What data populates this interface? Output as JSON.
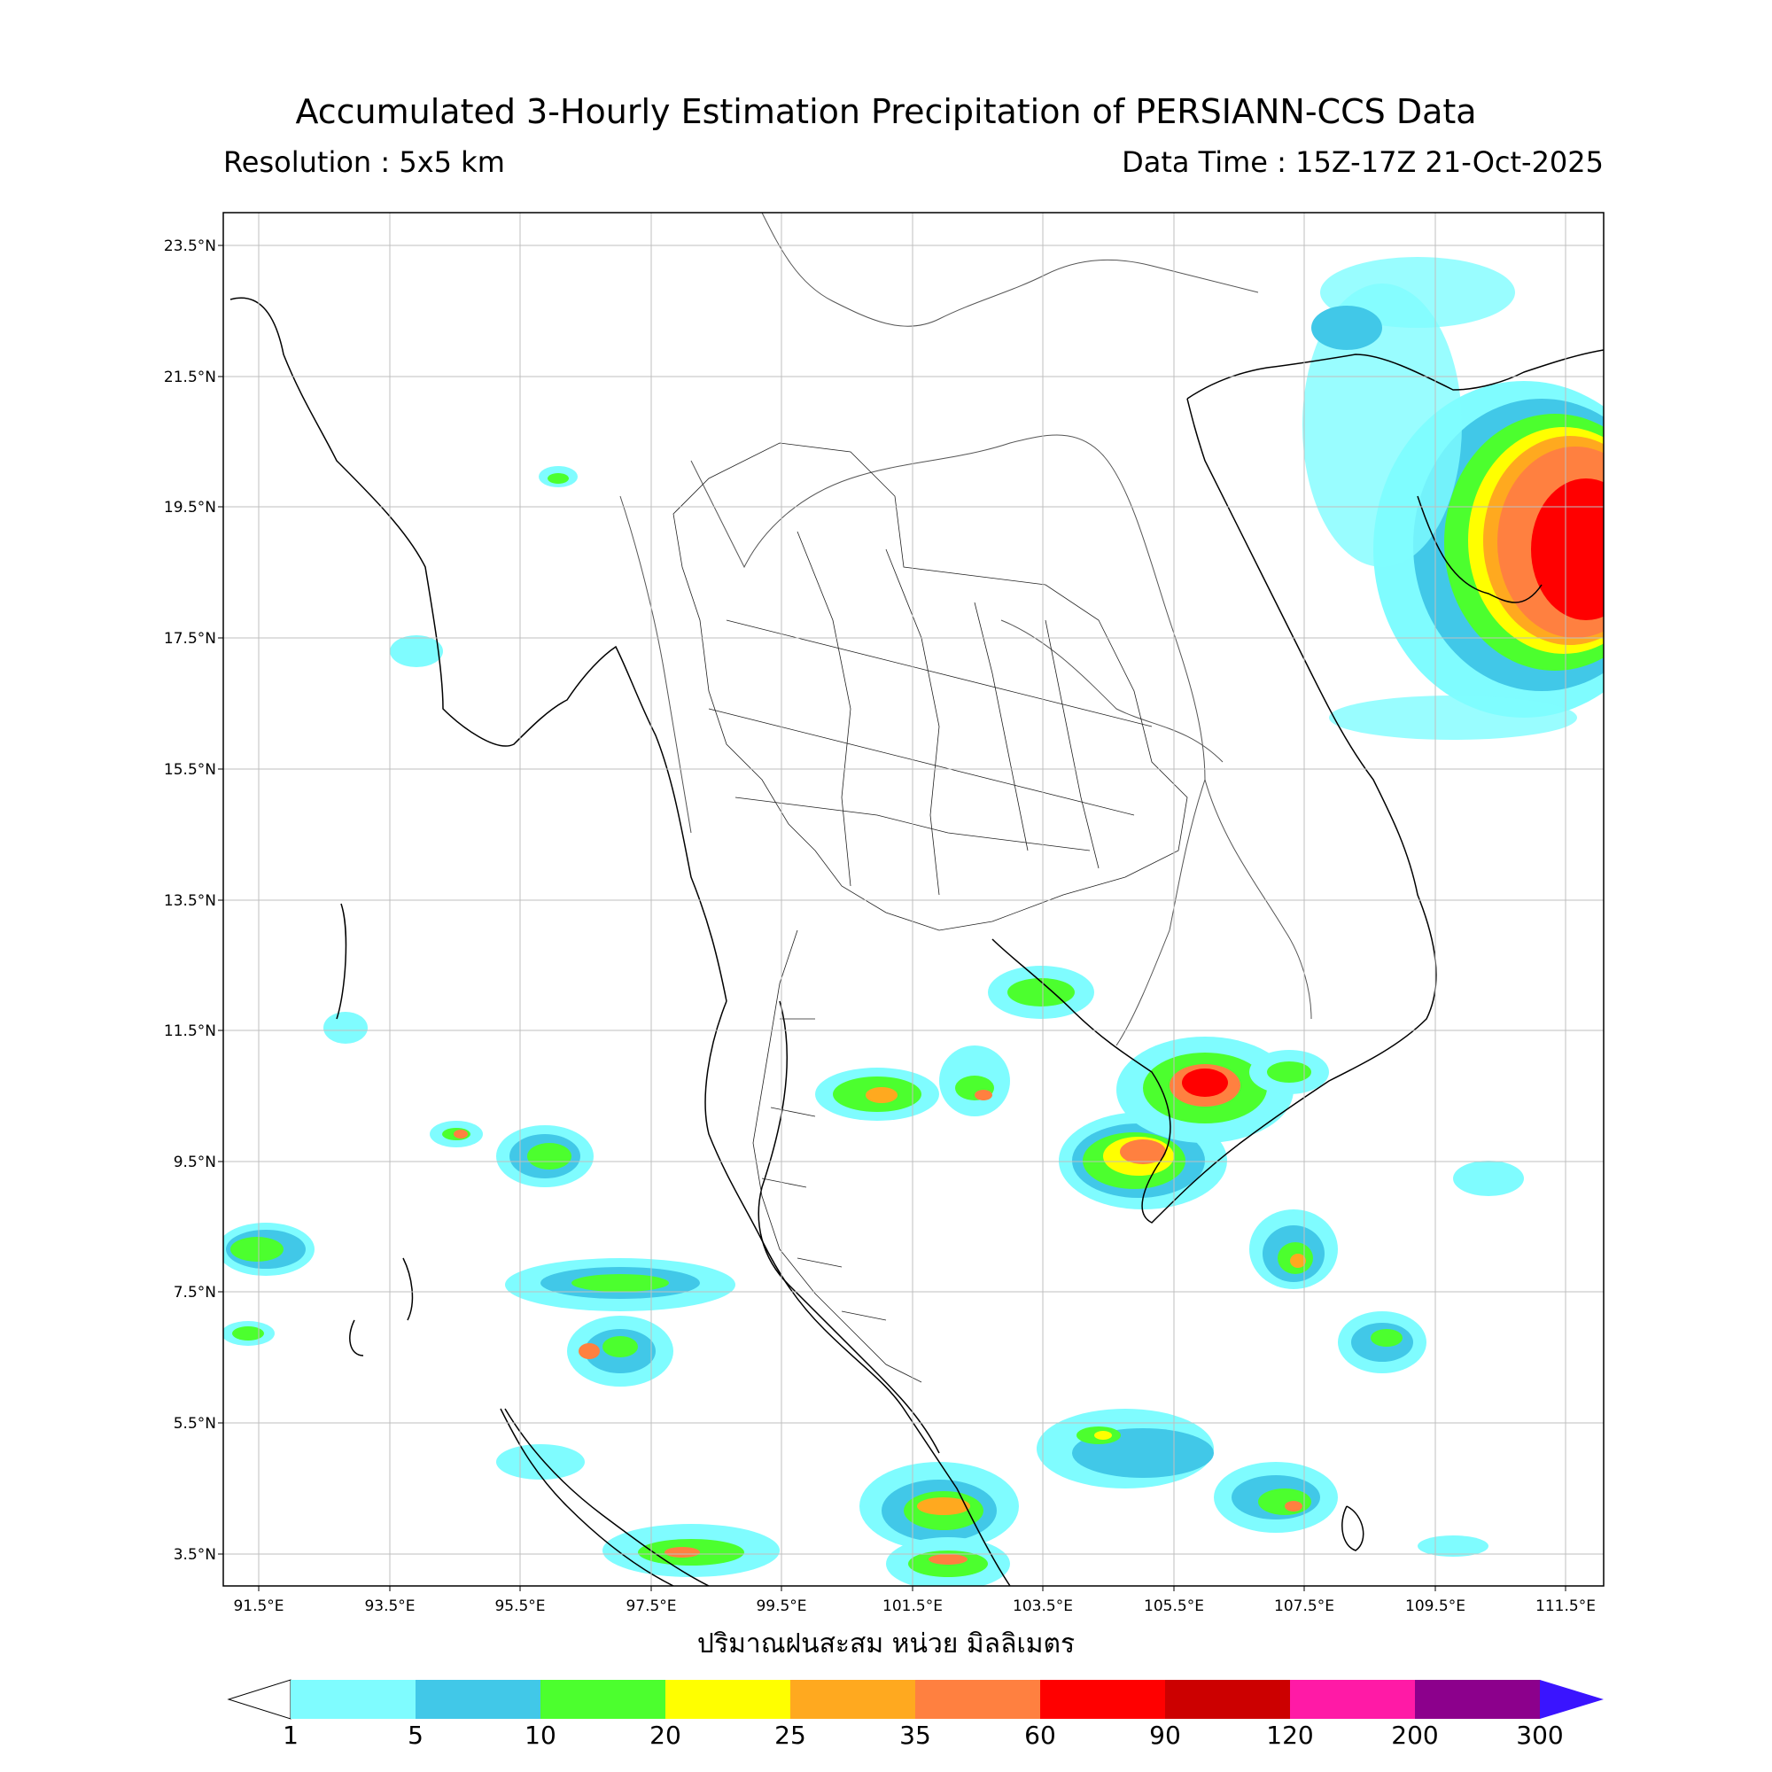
{
  "header": {
    "title": "Accumulated 3-Hourly Estimation Precipitation of PERSIANN-CCS Data",
    "resolution": "Resolution : 5x5 km",
    "data_time": "Data Time : 15Z-17Z 21-Oct-2025"
  },
  "axes": {
    "latitude_labels": [
      "23.5°N",
      "21.5°N",
      "19.5°N",
      "17.5°N",
      "15.5°N",
      "13.5°N",
      "11.5°N",
      "9.5°N",
      "7.5°N",
      "5.5°N",
      "3.5°N"
    ],
    "longitude_labels": [
      "91.5°E",
      "93.5°E",
      "95.5°E",
      "97.5°E",
      "99.5°E",
      "101.5°E",
      "103.5°E",
      "105.5°E",
      "107.5°E",
      "109.5°E",
      "111.5°E"
    ]
  },
  "colorbar": {
    "unit_label": "ปริมาณฝนสะสม หน่วย มิลลิเมตร",
    "levels": [
      "1",
      "5",
      "10",
      "20",
      "25",
      "35",
      "60",
      "90",
      "120",
      "200",
      "300"
    ],
    "colors": [
      "#7ffcff",
      "#41c8e8",
      "#4cff2e",
      "#ffff00",
      "#ffa91f",
      "#ff8040",
      "#ff0000",
      "#cc0000",
      "#ff1aa6",
      "#8c008c",
      "#3a14ff"
    ]
  }
}
